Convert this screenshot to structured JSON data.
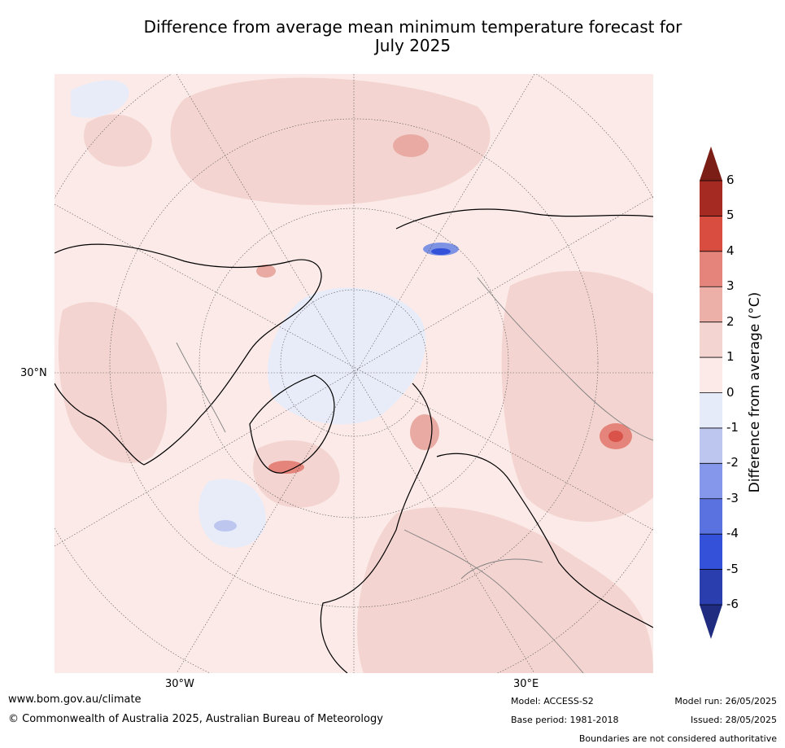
{
  "title": {
    "line1": "Difference from average mean minimum temperature forecast for",
    "line2": "July 2025"
  },
  "map": {
    "projection": "north-polar-stereographic",
    "lat_label": "30°N",
    "lon_labels": [
      "30°W",
      "30°E"
    ],
    "colors": {
      "ocean_background": "#fbeae7",
      "anomaly_plus_1_to_2": "#f3d4d0",
      "anomaly_plus_2_to_3": "#e8aaa2",
      "anomaly_plus_3_to_4": "#e4847a",
      "anomaly_plus_4_to_5": "#d9534a",
      "anomaly_minus_0_to_1": "#e8ecf9",
      "anomaly_minus_1_to_2": "#bcc6ef",
      "anomaly_minus_2_to_3": "#7f93e5",
      "coastline": "#000000",
      "border": "#808080"
    }
  },
  "colorbar": {
    "label": "Difference from average (°C)",
    "ticks": [
      "6",
      "5",
      "4",
      "3",
      "2",
      "1",
      "0",
      "-1",
      "-2",
      "-3",
      "-4",
      "-5",
      "-6"
    ],
    "levels": [
      {
        "range": "above 6",
        "color": "#7a1e16"
      },
      {
        "range": "5 to 6",
        "color": "#a52a22"
      },
      {
        "range": "4 to 5",
        "color": "#d94c40"
      },
      {
        "range": "3 to 4",
        "color": "#e4847a"
      },
      {
        "range": "2 to 3",
        "color": "#ecb0a8"
      },
      {
        "range": "1 to 2",
        "color": "#f4d4d0"
      },
      {
        "range": "0 to 1",
        "color": "#fbeae7"
      },
      {
        "range": "-1 to 0",
        "color": "#e6ebfa"
      },
      {
        "range": "-2 to -1",
        "color": "#bcc6ef"
      },
      {
        "range": "-3 to -2",
        "color": "#8497ea"
      },
      {
        "range": "-4 to -3",
        "color": "#5a72e0"
      },
      {
        "range": "-5 to -4",
        "color": "#3452d9"
      },
      {
        "range": "-6 to -5",
        "color": "#2a3eae"
      },
      {
        "range": "below -6",
        "color": "#1f2c80"
      }
    ]
  },
  "footer": {
    "url": "www.bom.gov.au/climate",
    "copyright": "© Commonwealth of Australia 2025, Australian Bureau of Meteorology",
    "model": "Model: ACCESS-S2",
    "base_period": "Base period: 1981-2018",
    "model_run": "Model run: 26/05/2025",
    "issued": "Issued: 28/05/2025",
    "disclaimer": "Boundaries are not considered authoritative"
  }
}
